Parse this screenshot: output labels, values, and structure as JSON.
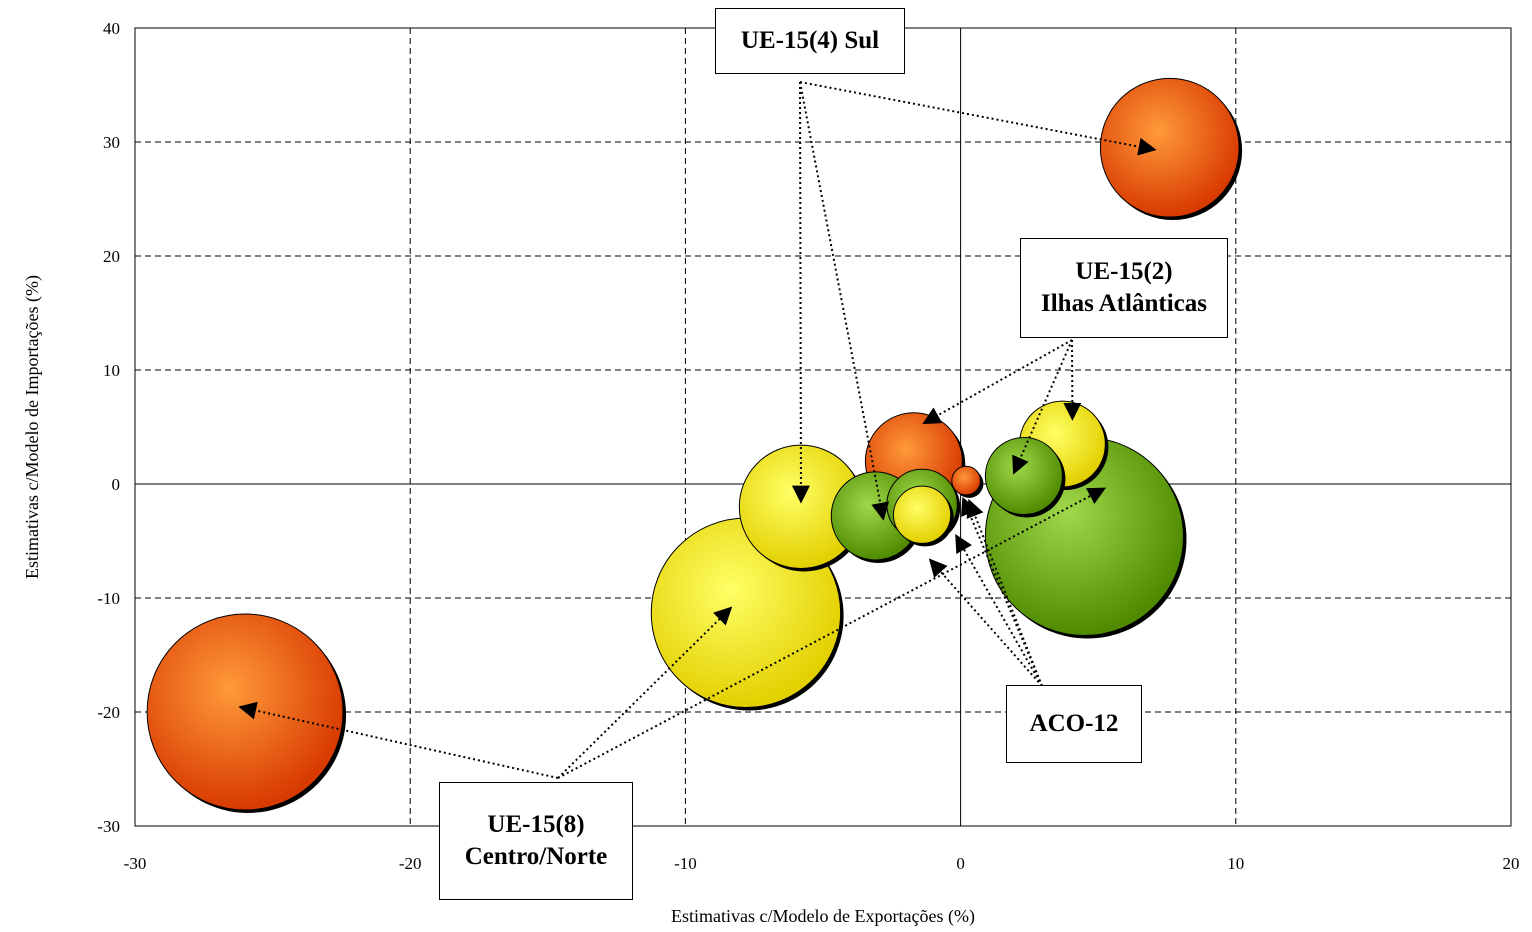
{
  "chart_data": {
    "type": "bubble",
    "title": "",
    "xlabel": "Estimativas c/Modelo de Exportações (%)",
    "ylabel": "Estimativas c/Modelo de Importações (%)",
    "xlim": [
      -30,
      20
    ],
    "ylim": [
      -30,
      40
    ],
    "xticks": [
      "-30",
      "-20",
      "-10",
      "0",
      "10",
      "20"
    ],
    "yticks": [
      "-30",
      "-20",
      "-10",
      "0",
      "10",
      "20",
      "30",
      "40"
    ],
    "grid": true,
    "legend": "none",
    "colors": {
      "orange": "#f05a00",
      "yellow": "#ffee00",
      "green": "#66a300"
    },
    "points": [
      {
        "x": -7.8,
        "y": -11.3,
        "size": 8.6,
        "color": "yellow"
      },
      {
        "x": 4.5,
        "y": -4.6,
        "size": 9.0,
        "color": "green"
      },
      {
        "x": -26.0,
        "y": -20.0,
        "size": 8.9,
        "color": "orange"
      },
      {
        "x": 7.6,
        "y": 29.5,
        "size": 6.3,
        "color": "orange"
      },
      {
        "x": -5.8,
        "y": -2.0,
        "size": 5.6,
        "color": "yellow"
      },
      {
        "x": 3.7,
        "y": 3.5,
        "size": 3.9,
        "color": "yellow"
      },
      {
        "x": -1.7,
        "y": 2.0,
        "size": 4.4,
        "color": "orange"
      },
      {
        "x": -1.4,
        "y": -2.7,
        "size": 2.6,
        "color": "yellow"
      },
      {
        "x": -3.1,
        "y": -2.8,
        "size": 4.0,
        "color": "green"
      },
      {
        "x": -1.4,
        "y": -1.8,
        "size": 3.2,
        "color": "green"
      },
      {
        "x": 2.3,
        "y": 0.7,
        "size": 3.5,
        "color": "green"
      },
      {
        "x": 0.2,
        "y": 0.3,
        "size": 1.3,
        "color": "orange"
      }
    ],
    "annotations": [
      {
        "lines": [
          "UE-15(4) Sul"
        ]
      },
      {
        "lines": [
          "UE-15(2)",
          "Ilhas Atlânticas"
        ]
      },
      {
        "lines": [
          "ACO-12"
        ]
      },
      {
        "lines": [
          "UE-15(8)",
          "Centro/Norte"
        ]
      }
    ]
  }
}
